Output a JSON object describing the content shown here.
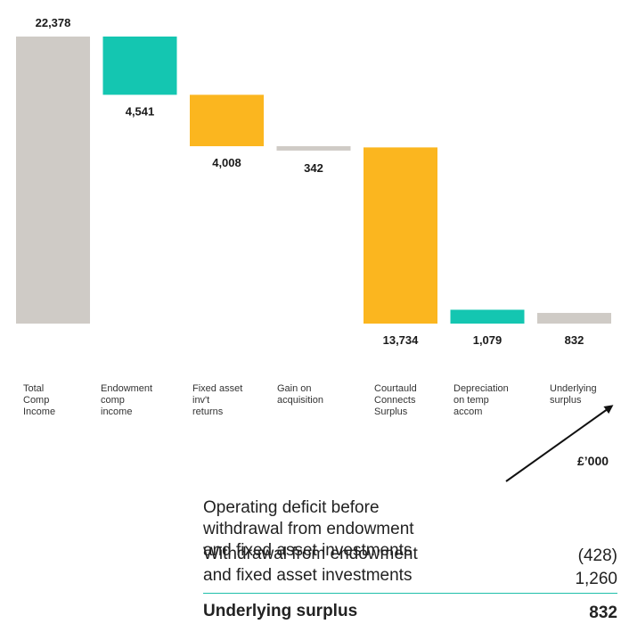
{
  "chart_data": {
    "type": "bar",
    "subtype": "waterfall",
    "unit": "£'000",
    "categories": [
      "Total\nComp\nIncome",
      "Endowment\ncomp\nincome",
      "Fixed asset\ninv't\nreturns",
      "Gain on\nacquisition",
      "Courtauld\nConnects\nSurplus",
      "Depreciation\non temp\naccom",
      "Underlying\nsurplus"
    ],
    "values": [
      22378,
      4541,
      4008,
      342,
      13734,
      1079,
      832
    ],
    "value_labels": [
      "22,378",
      "4,541",
      "4,008",
      "342",
      "13,734",
      "1,079",
      "832"
    ],
    "bars": [
      {
        "from": 0,
        "to": 22378,
        "color": "#cfcbc6",
        "label_pos": "above"
      },
      {
        "from": 22378,
        "to": 17837,
        "color": "#14c6b1",
        "label_pos": "below"
      },
      {
        "from": 17837,
        "to": 13829,
        "color": "#fbb61f",
        "label_pos": "below"
      },
      {
        "from": 13829,
        "to": 13487,
        "color": "#cfcbc6",
        "label_pos": "below"
      },
      {
        "from": 13734,
        "to": 0,
        "color": "#fbb61f",
        "label_pos": "below"
      },
      {
        "from": 1079,
        "to": 0,
        "color": "#14c6b1",
        "label_pos": "below"
      },
      {
        "from": 832,
        "to": 0,
        "color": "#cfcbc6",
        "label_pos": "below"
      }
    ],
    "ylim": [
      0,
      22378
    ],
    "grid": false,
    "legend": "none"
  },
  "unit_label": "£’000",
  "table": {
    "rows": [
      {
        "label": "Operating deficit before\nwithdrawal from endowment\nand fixed asset investments",
        "value": "(428)"
      },
      {
        "label": "Withdrawal from endowment\nand fixed asset investments",
        "value": "1,260"
      }
    ],
    "total": {
      "label": "Underlying surplus",
      "value": "832"
    }
  },
  "colors": {
    "teal": "#14c6b1",
    "amber": "#fbb61f",
    "grey": "#cfcbc6",
    "rule": "#1fbfaa"
  }
}
